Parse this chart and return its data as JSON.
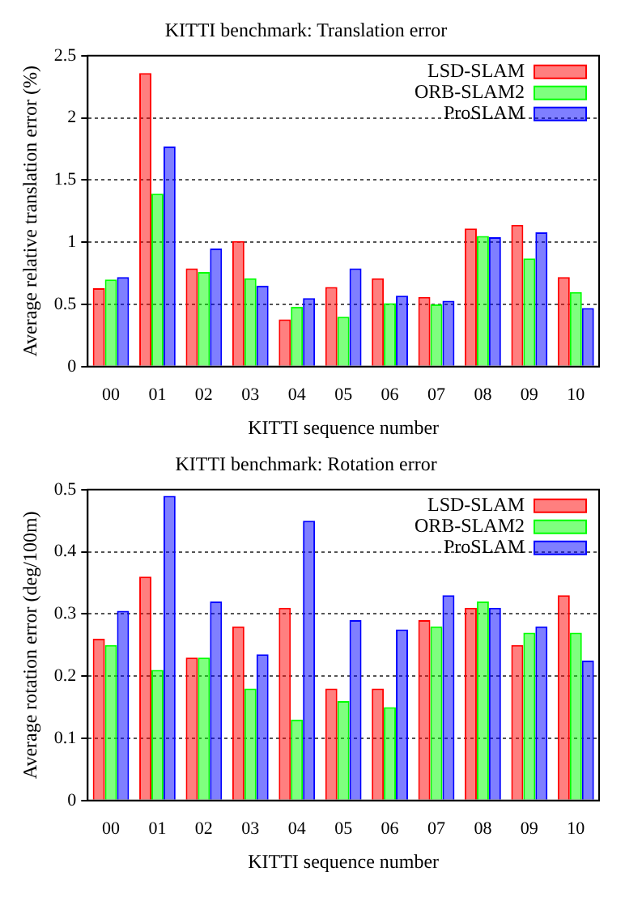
{
  "chart_data": [
    {
      "type": "bar",
      "title": "KITTI benchmark: Translation error",
      "xlabel": "KITTI sequence number",
      "ylabel": "Average relative translation error (%)",
      "categories": [
        "00",
        "01",
        "02",
        "03",
        "04",
        "05",
        "06",
        "07",
        "08",
        "09",
        "10"
      ],
      "series": [
        {
          "name": "LSD-SLAM",
          "color": "#ff0000",
          "values": [
            0.63,
            2.36,
            0.79,
            1.01,
            0.38,
            0.64,
            0.71,
            0.56,
            1.11,
            1.14,
            0.72
          ]
        },
        {
          "name": "ORB-SLAM2",
          "color": "#00ff00",
          "values": [
            0.7,
            1.39,
            0.76,
            0.71,
            0.48,
            0.4,
            0.51,
            0.5,
            1.05,
            0.87,
            0.6
          ]
        },
        {
          "name": "ProSLAM",
          "color": "#0000ff",
          "values": [
            0.72,
            1.77,
            0.95,
            0.65,
            0.55,
            0.79,
            0.57,
            0.53,
            1.04,
            1.08,
            0.47
          ]
        }
      ],
      "ylim": [
        0,
        2.5
      ],
      "yticks": [
        0,
        0.5,
        1,
        1.5,
        2,
        2.5
      ],
      "grid": "y",
      "legend": "top right"
    },
    {
      "type": "bar",
      "title": "KITTI benchmark: Rotation error",
      "xlabel": "KITTI sequence number",
      "ylabel": "Average rotation error (deg/100m)",
      "categories": [
        "00",
        "01",
        "02",
        "03",
        "04",
        "05",
        "06",
        "07",
        "08",
        "09",
        "10"
      ],
      "series": [
        {
          "name": "LSD-SLAM",
          "color": "#ff0000",
          "values": [
            0.26,
            0.36,
            0.23,
            0.28,
            0.31,
            0.18,
            0.18,
            0.29,
            0.31,
            0.25,
            0.33
          ]
        },
        {
          "name": "ORB-SLAM2",
          "color": "#00ff00",
          "values": [
            0.25,
            0.21,
            0.23,
            0.18,
            0.13,
            0.16,
            0.15,
            0.28,
            0.32,
            0.27,
            0.27
          ]
        },
        {
          "name": "ProSLAM",
          "color": "#0000ff",
          "values": [
            0.305,
            0.49,
            0.32,
            0.235,
            0.45,
            0.29,
            0.275,
            0.33,
            0.31,
            0.28,
            0.225
          ]
        }
      ],
      "ylim": [
        0,
        0.5
      ],
      "yticks": [
        0,
        0.1,
        0.2,
        0.3,
        0.4,
        0.5
      ],
      "grid": "y",
      "legend": "top right"
    }
  ]
}
